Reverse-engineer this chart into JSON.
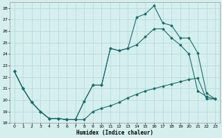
{
  "xlabel": "Humidex (Indice chaleur)",
  "ylim": [
    18,
    28.5
  ],
  "xlim": [
    -0.5,
    23.5
  ],
  "yticks": [
    18,
    19,
    20,
    21,
    22,
    23,
    24,
    25,
    26,
    27,
    28
  ],
  "xticks": [
    0,
    1,
    2,
    3,
    4,
    5,
    6,
    7,
    8,
    9,
    10,
    11,
    12,
    13,
    14,
    15,
    16,
    17,
    18,
    19,
    20,
    21,
    22,
    23
  ],
  "bg_color": "#d5eeee",
  "grid_color": "#b8dcdc",
  "line_color": "#1a6b6b",
  "series1_x": [
    0,
    1,
    2,
    3,
    4,
    5,
    6,
    7,
    8,
    9,
    10,
    11,
    12,
    13,
    14,
    15,
    16,
    17,
    18,
    19,
    20,
    21,
    22,
    23
  ],
  "series1_y": [
    22.5,
    21.0,
    19.8,
    19.0,
    18.4,
    18.4,
    18.3,
    18.3,
    18.3,
    19.0,
    19.3,
    19.5,
    19.8,
    20.2,
    20.5,
    20.8,
    21.0,
    21.2,
    21.4,
    21.6,
    21.8,
    21.9,
    20.1,
    20.1
  ],
  "series2_x": [
    0,
    1,
    2,
    3,
    4,
    5,
    6,
    7,
    8,
    9,
    10,
    11,
    12,
    13,
    14,
    15,
    16,
    17,
    18,
    19,
    20,
    21,
    22,
    23
  ],
  "series2_y": [
    22.5,
    21.0,
    19.8,
    19.0,
    18.4,
    18.4,
    18.3,
    18.3,
    19.9,
    21.3,
    21.3,
    24.5,
    24.3,
    24.5,
    24.8,
    25.5,
    26.2,
    26.2,
    25.4,
    24.8,
    24.0,
    20.8,
    20.3,
    20.1
  ],
  "series3_x": [
    0,
    1,
    2,
    3,
    4,
    5,
    6,
    7,
    8,
    9,
    10,
    11,
    12,
    13,
    14,
    15,
    16,
    17,
    18,
    19,
    20,
    21,
    22,
    23
  ],
  "series3_y": [
    22.5,
    21.0,
    19.8,
    19.0,
    18.4,
    18.4,
    18.3,
    18.3,
    19.9,
    21.3,
    21.3,
    24.5,
    24.3,
    24.5,
    27.2,
    27.5,
    28.2,
    26.7,
    26.5,
    25.4,
    25.4,
    24.1,
    20.6,
    20.1
  ]
}
